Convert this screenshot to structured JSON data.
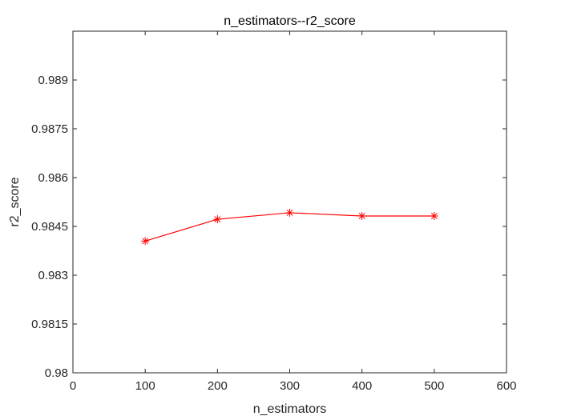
{
  "chart_data": {
    "type": "line",
    "title": "n_estimators--r2_score",
    "xlabel": "n_estimators",
    "ylabel": "r2_score",
    "xlim": [
      0,
      600
    ],
    "ylim": [
      0.98,
      0.9905
    ],
    "x_ticks": [
      0,
      100,
      200,
      300,
      400,
      500,
      600
    ],
    "x_tick_labels": [
      "0",
      "100",
      "200",
      "300",
      "400",
      "500",
      "600"
    ],
    "y_ticks": [
      0.98,
      0.9815,
      0.983,
      0.9845,
      0.986,
      0.9875,
      0.989
    ],
    "y_tick_labels": [
      "0.98",
      "0.9815",
      "0.983",
      "0.9845",
      "0.986",
      "0.9875",
      "0.989"
    ],
    "grid": false,
    "series": [
      {
        "x": [
          100,
          200,
          300,
          400,
          500
        ],
        "values": [
          0.98405,
          0.98472,
          0.98492,
          0.98482,
          0.98482
        ],
        "color": "#ff0000",
        "marker": "asterisk"
      }
    ]
  }
}
